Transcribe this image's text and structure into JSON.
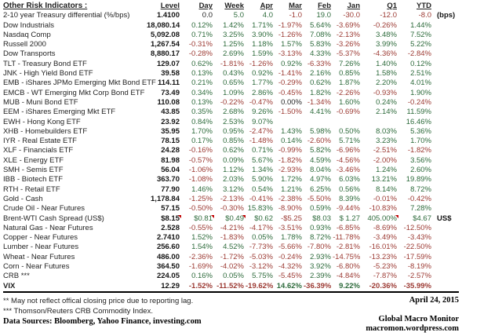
{
  "table": {
    "title": "Other Risk Indicators :",
    "columns": [
      "Level",
      "Day",
      "Week",
      "Apr",
      "Mar",
      "Feb",
      "Jan",
      "Q1",
      "YTD"
    ],
    "rows": [
      {
        "label": "2-10 year Treasury differential (%/bps)",
        "level": "1.4100",
        "values": [
          "0.0",
          "5.0",
          "4.0",
          "-1.0",
          "19.0",
          "-30.0",
          "-12.0",
          "-8.0"
        ],
        "suffix": "(bps)"
      },
      {
        "label": "Dow Industrials",
        "level": "18,080.14",
        "values": [
          "0.12%",
          "1.42%",
          "1.71%",
          "-1.97%",
          "5.64%",
          "-3.69%",
          "-0.26%",
          "1.44%"
        ]
      },
      {
        "label": "Nasdaq Comp",
        "level": "5,092.08",
        "values": [
          "0.71%",
          "3.25%",
          "3.90%",
          "-1.26%",
          "7.08%",
          "-2.13%",
          "3.48%",
          "7.52%"
        ]
      },
      {
        "label": "Russell 2000",
        "level": "1,267.54",
        "values": [
          "-0.31%",
          "1.25%",
          "1.18%",
          "1.57%",
          "5.83%",
          "-3.26%",
          "3.99%",
          "5.22%"
        ]
      },
      {
        "label": "Dow Transports",
        "level": "8,880.17",
        "values": [
          "-0.28%",
          "2.69%",
          "1.59%",
          "-3.13%",
          "4.33%",
          "-5.37%",
          "-4.36%",
          "-2.84%"
        ]
      },
      {
        "label": "TLT - Treasury Bond ETF",
        "level": "129.07",
        "values": [
          "0.62%",
          "-1.81%",
          "-1.26%",
          "0.92%",
          "-6.33%",
          "7.26%",
          "1.40%",
          "0.12%"
        ]
      },
      {
        "label": "JNK - High Yield Bond ETF",
        "level": "39.58",
        "values": [
          "0.13%",
          "0.43%",
          "0.92%",
          "-1.41%",
          "2.16%",
          "0.85%",
          "1.58%",
          "2.51%"
        ]
      },
      {
        "label": "EMB - iShares JPMo Emerging Mkt Bond ETF",
        "level": "114.11",
        "values": [
          "0.21%",
          "0.65%",
          "1.77%",
          "-0.29%",
          "0.62%",
          "1.87%",
          "2.20%",
          "4.01%"
        ]
      },
      {
        "label": "EMCB - WT Emerging Mkt Corp Bond ETF",
        "level": "73.49",
        "values": [
          "0.34%",
          "1.09%",
          "2.86%",
          "-0.45%",
          "1.82%",
          "-2.26%",
          "-0.93%",
          "1.90%"
        ]
      },
      {
        "label": "MUB - Muni Bond ETF",
        "level": "110.08",
        "values": [
          "0.13%",
          "-0.22%",
          "-0.47%",
          "0.00%",
          "-1.34%",
          "1.60%",
          "0.24%",
          "-0.24%"
        ]
      },
      {
        "label": "EEM - iShares Emerging Mkt ETF",
        "level": "43.85",
        "values": [
          "0.35%",
          "2.68%",
          "9.26%",
          "-1.50%",
          "4.41%",
          "-0.69%",
          "2.14%",
          "11.59%"
        ]
      },
      {
        "label": "EWH - Hong Kong ETF",
        "level": "23.92",
        "values": [
          "0.84%",
          "2.53%",
          "9.07%",
          "",
          "",
          "",
          "",
          "16.46%"
        ]
      },
      {
        "label": "XHB - Homebuilders ETF",
        "level": "35.95",
        "values": [
          "1.70%",
          "0.95%",
          "-2.47%",
          "1.43%",
          "5.98%",
          "0.50%",
          "8.03%",
          "5.36%"
        ]
      },
      {
        "label": "IYR - Real Estate ETF",
        "level": "78.15",
        "values": [
          "0.17%",
          "0.85%",
          "-1.48%",
          "0.14%",
          "-2.60%",
          "5.71%",
          "3.23%",
          "1.70%"
        ]
      },
      {
        "label": "XLF - Financials ETF",
        "level": "24.28",
        "values": [
          "-0.16%",
          "0.62%",
          "0.71%",
          "-0.99%",
          "5.82%",
          "-6.96%",
          "-2.51%",
          "-1.82%"
        ]
      },
      {
        "label": "XLE - Energy ETF",
        "level": "81.98",
        "values": [
          "-0.57%",
          "0.09%",
          "5.67%",
          "-1.82%",
          "4.59%",
          "-4.56%",
          "-2.00%",
          "3.56%"
        ]
      },
      {
        "label": "SMH - Semis ETF",
        "level": "56.04",
        "values": [
          "-1.06%",
          "1.12%",
          "1.34%",
          "-2.93%",
          "8.04%",
          "-3.46%",
          "1.24%",
          "2.60%"
        ]
      },
      {
        "label": "IBB - Biotech ETF",
        "level": "363.70",
        "values": [
          "-1.08%",
          "2.03%",
          "5.90%",
          "1.72%",
          "4.97%",
          "6.03%",
          "13.21%",
          "19.89%"
        ]
      },
      {
        "label": "RTH - Retail ETF",
        "level": "77.90",
        "values": [
          "1.46%",
          "3.12%",
          "0.54%",
          "1.21%",
          "6.25%",
          "0.56%",
          "8.14%",
          "8.72%"
        ]
      },
      {
        "label": "Gold - Cash",
        "level": "1,178.84",
        "values": [
          "-1.25%",
          "-2.13%",
          "-0.41%",
          "-2.38%",
          "-5.50%",
          "8.39%",
          "-0.01%",
          "-0.42%"
        ]
      },
      {
        "label": "Crude Oil - Near Futures",
        "level": "57.15",
        "values": [
          "-0.50%",
          "-0.30%",
          "15.83%",
          "-8.90%",
          "0.59%",
          "-9.44%",
          "-10.83%",
          "7.28%"
        ]
      },
      {
        "label": "Brent-WTI Cash Spread (US$)",
        "level": "$8.15",
        "values": [
          "$0.81",
          "$0.49",
          "$0.62",
          "-$5.25",
          "$8.03",
          "$ 1.27",
          "405.00%",
          "$4.67"
        ],
        "suffix": "US$",
        "comments": [
          "level",
          0,
          1,
          6
        ]
      },
      {
        "label": "Natural Gas - Near Futures",
        "level": "2.528",
        "values": [
          "-0.55%",
          "-4.21%",
          "-4.17%",
          "-3.51%",
          "0.93%",
          "-6.85%",
          "-8.69%",
          "-12.50%"
        ]
      },
      {
        "label": "Copper - Near Futures",
        "level": "2.7410",
        "values": [
          "1.52%",
          "-1.83%",
          "0.05%",
          "1.78%",
          "8.72%",
          "-11.78%",
          "-3.49%",
          "-3.43%"
        ]
      },
      {
        "label": "Lumber - Near Futures",
        "level": "256.60",
        "values": [
          "1.54%",
          "4.52%",
          "-7.73%",
          "-5.66%",
          "-7.80%",
          "-2.81%",
          "-16.01%",
          "-22.50%"
        ]
      },
      {
        "label": "Wheat - Near Futures",
        "level": "486.00",
        "values": [
          "-2.36%",
          "-1.72%",
          "-5.03%",
          "-0.24%",
          "2.93%",
          "-14.75%",
          "-13.23%",
          "-17.59%"
        ]
      },
      {
        "label": "Corn - Near Futures",
        "level": "364.50",
        "values": [
          "-1.69%",
          "-4.02%",
          "-3.12%",
          "-4.32%",
          "3.92%",
          "-6.80%",
          "-5.23%",
          "-8.19%"
        ]
      },
      {
        "label": "CRB ***",
        "level": "224.05",
        "values": [
          "0.16%",
          "0.05%",
          "5.75%",
          "-5.45%",
          "2.39%",
          "-4.84%",
          "-7.87%",
          "-2.57%"
        ]
      },
      {
        "label": "VIX",
        "level": "12.29",
        "values": [
          "-1.52%",
          "-11.52%",
          "-19.62%",
          "14.62%",
          "-36.39%",
          "9.22%",
          "-20.36%",
          "-35.99%"
        ],
        "bold": true
      }
    ]
  },
  "footer": {
    "note1": "**  May not reflect offical closing price due to reporting lag.",
    "note2": "*** Thomson/Reuters CRB Commodity Index.",
    "data_sources": "Data Sources:  Bloomberg,  Yahoo Finance, investing.com",
    "date": "April 24, 2015",
    "brand": "Global Macro Monitor",
    "url": "macromon.wordpress.com"
  },
  "colors": {
    "positive_text": "#2e6b3c",
    "negative_text": "#9c3a33",
    "comment_flag": "#c00000"
  }
}
